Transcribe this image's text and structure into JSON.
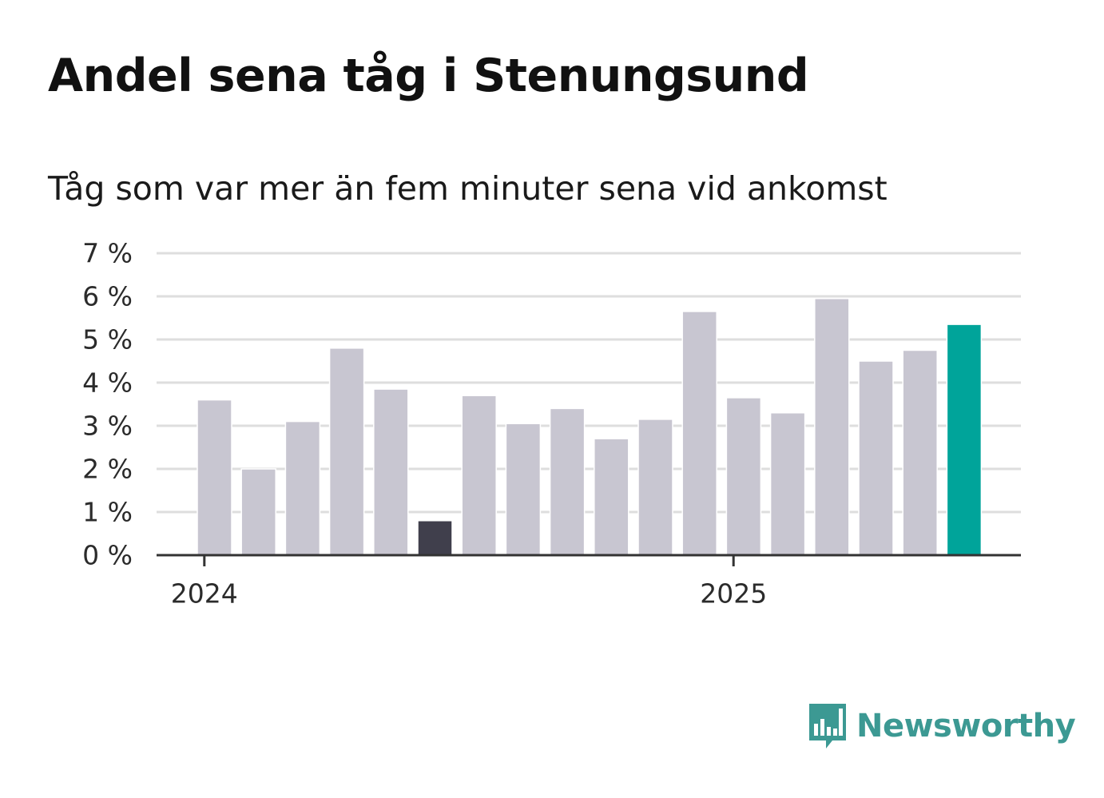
{
  "title": "Andel sena tåg i Stenungsund",
  "subtitle": "Tåg som var mer än fem minuter sena vid ankomst",
  "brand": {
    "name": "Newsworthy",
    "color": "#3c9993",
    "icon": "newsworthy-chart-bubble-icon"
  },
  "colors": {
    "default_bar": "#c8c6d1",
    "lowest_bar": "#403f4c",
    "latest_bar": "#00a49a",
    "grid": "#dedede",
    "axis": "#333333"
  },
  "chart_data": {
    "type": "bar",
    "title": "Andel sena tåg i Stenungsund",
    "subtitle": "Tåg som var mer än fem minuter sena vid ankomst",
    "xlabel": "",
    "ylabel": "",
    "ylim": [
      0,
      7
    ],
    "yticks": [
      0,
      1,
      2,
      3,
      4,
      5,
      6,
      7
    ],
    "ytick_labels": [
      "0 %",
      "1 %",
      "2 %",
      "3 %",
      "4 %",
      "5 %",
      "6 %",
      "7 %"
    ],
    "xtick_labels": [
      "2024",
      "2025"
    ],
    "grid": true,
    "legend": false,
    "months": [
      "2024-01",
      "2024-02",
      "2024-03",
      "2024-04",
      "2024-05",
      "2024-06",
      "2024-07",
      "2024-08",
      "2024-09",
      "2024-10",
      "2024-11",
      "2024-12",
      "2025-01",
      "2025-02",
      "2025-03",
      "2025-04",
      "2025-05",
      "2025-06"
    ],
    "values": [
      3.6,
      2.0,
      3.1,
      4.8,
      3.85,
      0.8,
      3.7,
      3.05,
      3.4,
      2.7,
      3.15,
      5.65,
      3.65,
      3.3,
      5.95,
      4.5,
      4.75,
      5.35
    ],
    "highlight": {
      "lowest": "2024-06",
      "latest": "2025-06"
    }
  }
}
